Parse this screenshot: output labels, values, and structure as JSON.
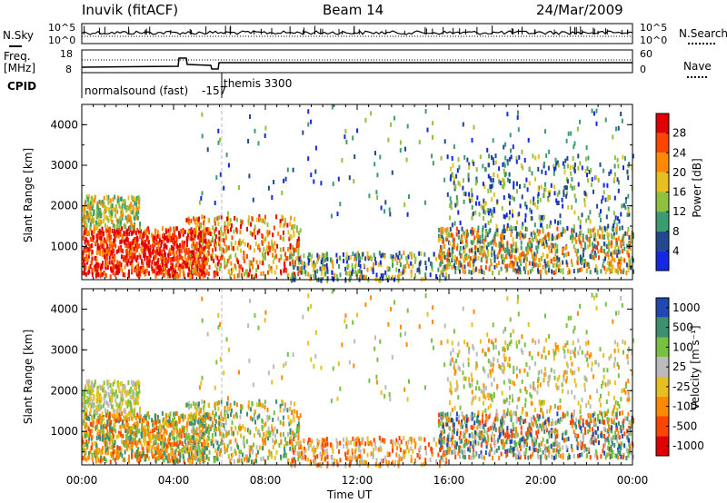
{
  "header": {
    "station": "Inuvik (fitACF)",
    "beam": "Beam 14",
    "date": "24/Mar/2009"
  },
  "status_panels": {
    "nsky_label": "N.Sky",
    "nsky_ticks": [
      "10^5",
      "10^0"
    ],
    "nsearch_label": "N.Search",
    "nsearch_ticks": [
      "10^5",
      "10^0"
    ],
    "freq_label": "Freq.",
    "freq_unit": "[MHz]",
    "freq_ticks": [
      "18",
      "8"
    ],
    "nave_label": "Nave",
    "nave_ticks": [
      "60",
      "0"
    ],
    "cpid_label": "CPID",
    "cpid_mode1": "normalsound (fast)",
    "cpid_mode1_id": "-157",
    "cpid_mode2": "themis 3300"
  },
  "chart_data": [
    {
      "type": "heatmap",
      "name": "power-panel",
      "ylabel": "Slant Range [km]",
      "xlabel": "",
      "ylim": [
        180,
        4500
      ],
      "y_ticks": [
        1000,
        2000,
        3000,
        4000
      ],
      "x_ticks": [
        "00:00",
        "04:00",
        "08:00",
        "12:00",
        "16:00",
        "20:00",
        "00:00"
      ],
      "xlim_hours": [
        0,
        24
      ],
      "colorbar_label": "Power [dB]",
      "colorbar_ticks": [
        "28",
        "24",
        "20",
        "16",
        "12",
        "8",
        "4"
      ],
      "colorbar_colors": [
        "#e00000",
        "#ff4400",
        "#ff8a00",
        "#e6c020",
        "#8fc040",
        "#3c9c6e",
        "#22488e",
        "#1428e0"
      ]
    },
    {
      "type": "heatmap",
      "name": "velocity-panel",
      "ylabel": "Slant Range [km]",
      "xlabel": "Time UT",
      "ylim": [
        180,
        4500
      ],
      "y_ticks": [
        1000,
        2000,
        3000,
        4000
      ],
      "x_ticks": [
        "00:00",
        "04:00",
        "08:00",
        "12:00",
        "16:00",
        "20:00",
        "00:00"
      ],
      "xlim_hours": [
        0,
        24
      ],
      "colorbar_label": "Velocity [m s⁻¹]",
      "colorbar_ticks": [
        "1000",
        "500",
        "100",
        "25",
        "-25",
        "-100",
        "-500",
        "-1000"
      ],
      "colorbar_colors": [
        "#2048b0",
        "#3c9070",
        "#78c040",
        "#bbbbbb",
        "#e6c020",
        "#ff8a00",
        "#ff4400",
        "#e00000"
      ]
    }
  ]
}
